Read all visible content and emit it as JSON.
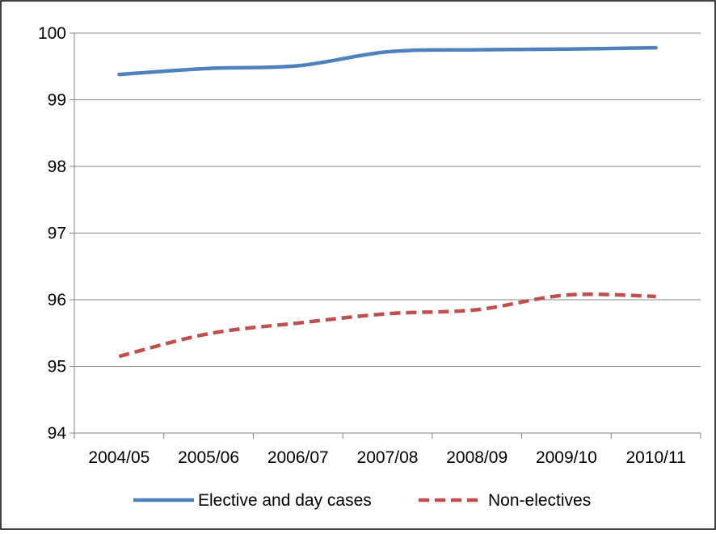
{
  "chart_data": {
    "type": "line",
    "title": "",
    "xlabel": "",
    "ylabel": "",
    "categories": [
      "2004/05",
      "2005/06",
      "2006/07",
      "2007/08",
      "2008/09",
      "2009/10",
      "2010/11"
    ],
    "ylim": [
      94,
      100
    ],
    "yticks": [
      "94",
      "95",
      "96",
      "97",
      "98",
      "99",
      "100"
    ],
    "grid": "horizontal",
    "legend_position": "bottom",
    "series": [
      {
        "name": "Elective and day cases",
        "values": [
          99.38,
          99.47,
          99.51,
          99.72,
          99.75,
          99.76,
          99.78
        ],
        "color": "#4F81BD",
        "style": "solid"
      },
      {
        "name": "Non-electives",
        "values": [
          95.15,
          95.49,
          95.65,
          95.79,
          95.85,
          96.07,
          96.05
        ],
        "color": "#C0504D",
        "style": "dashed"
      }
    ]
  }
}
